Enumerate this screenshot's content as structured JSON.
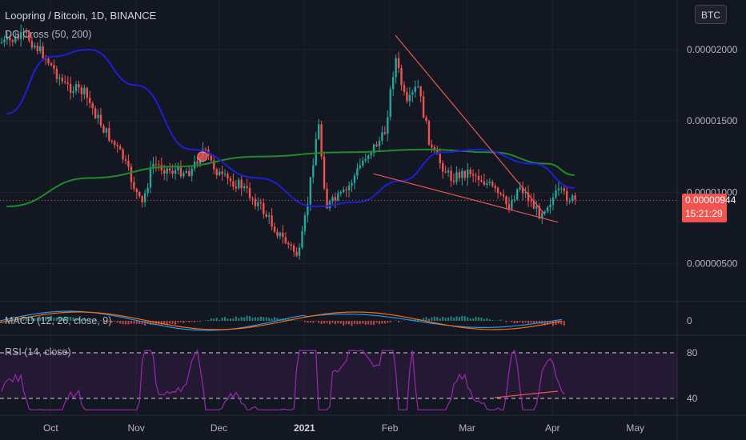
{
  "header": {
    "symbol_line": "Loopring / Bitcoin, 1D, BINANCE",
    "indicator_line": "DG Cross (50, 200)",
    "currency_button": "BTC"
  },
  "price_axis": {
    "labels": [
      "0.00002000",
      "0.00001500",
      "0.00001000",
      "0.00000500"
    ],
    "values": [
      2e-05,
      1.5e-05,
      1e-05,
      5e-06
    ]
  },
  "last_price": {
    "value": "0.00000944",
    "countdown": "15:21:29",
    "color": "#f05350"
  },
  "macd_panel": {
    "title": "MACD (12, 26, close, 9)",
    "axis_label": "0"
  },
  "rsi_panel": {
    "title": "RSI (14, close)",
    "axis_labels": [
      "80",
      "40"
    ]
  },
  "time_axis": [
    "Oct",
    "Nov",
    "Dec",
    "2021",
    "Feb",
    "Mar",
    "Apr",
    "May"
  ],
  "colors": {
    "background": "#131722",
    "up": "#26a69a",
    "down": "#ef5350",
    "ma50": "#1e1ed6",
    "ma200": "#1e8c28",
    "trendline": "#ef5350",
    "rsi": "#9c27b0",
    "macd": "#2196f3",
    "signal": "#ff6d00"
  },
  "chart_data": {
    "type": "candlestick",
    "title": "Loopring / Bitcoin, 1D, BINANCE",
    "y_unit": "BTC",
    "ylim": [
      2e-06,
      2.2e-05
    ],
    "x_ticks": [
      "Oct",
      "Nov",
      "Dec",
      "2021",
      "Feb",
      "Mar",
      "Apr",
      "May"
    ],
    "close_path": [
      [
        "2020-09-15",
        2.05e-05
      ],
      [
        "2020-09-22",
        2.1e-05
      ],
      [
        "2020-09-29",
        1.95e-05
      ],
      [
        "2020-10-06",
        1.75e-05
      ],
      [
        "2020-10-13",
        1.7e-05
      ],
      [
        "2020-10-20",
        1.45e-05
      ],
      [
        "2020-10-27",
        1.25e-05
      ],
      [
        "2020-11-03",
        9e-06
      ],
      [
        "2020-11-07",
        1.2e-05
      ],
      [
        "2020-11-14",
        1.15e-05
      ],
      [
        "2020-11-21",
        1.15e-05
      ],
      [
        "2020-11-25",
        1.3e-05
      ],
      [
        "2020-12-02",
        1.1e-05
      ],
      [
        "2020-12-09",
        1.05e-05
      ],
      [
        "2020-12-16",
        9e-06
      ],
      [
        "2020-12-23",
        7e-06
      ],
      [
        "2020-12-30",
        5.5e-06
      ],
      [
        "2021-01-02",
        9e-06
      ],
      [
        "2021-01-06",
        1.5e-05
      ],
      [
        "2021-01-09",
        9e-06
      ],
      [
        "2021-01-16",
        1e-05
      ],
      [
        "2021-01-23",
        1.25e-05
      ],
      [
        "2021-01-30",
        1.4e-05
      ],
      [
        "2021-02-03",
        1.95e-05
      ],
      [
        "2021-02-07",
        1.6e-05
      ],
      [
        "2021-02-11",
        1.75e-05
      ],
      [
        "2021-02-16",
        1.3e-05
      ],
      [
        "2021-02-23",
        1.1e-05
      ],
      [
        "2021-03-02",
        1.15e-05
      ],
      [
        "2021-03-09",
        1.05e-05
      ],
      [
        "2021-03-16",
        9e-06
      ],
      [
        "2021-03-20",
        1.05e-05
      ],
      [
        "2021-03-27",
        8.5e-06
      ],
      [
        "2021-04-03",
        1e-05
      ],
      [
        "2021-04-09",
        9.4e-06
      ]
    ],
    "ma50_path": [
      [
        "2020-09-15",
        1.55e-05
      ],
      [
        "2020-10-01",
        1.95e-05
      ],
      [
        "2020-10-15",
        2e-05
      ],
      [
        "2020-11-01",
        1.75e-05
      ],
      [
        "2020-11-21",
        1.3e-05
      ],
      [
        "2020-12-15",
        1.1e-05
      ],
      [
        "2021-01-05",
        9e-06
      ],
      [
        "2021-01-20",
        9.3e-06
      ],
      [
        "2021-02-05",
        1.08e-05
      ],
      [
        "2021-02-20",
        1.28e-05
      ],
      [
        "2021-03-05",
        1.3e-05
      ],
      [
        "2021-03-25",
        1.2e-05
      ],
      [
        "2021-04-09",
        1.03e-05
      ]
    ],
    "ma200_path": [
      [
        "2020-09-15",
        9e-06
      ],
      [
        "2020-10-15",
        1.1e-05
      ],
      [
        "2020-11-15",
        1.18e-05
      ],
      [
        "2020-12-15",
        1.25e-05
      ],
      [
        "2021-01-15",
        1.28e-05
      ],
      [
        "2021-02-15",
        1.3e-05
      ],
      [
        "2021-03-10",
        1.28e-05
      ],
      [
        "2021-03-30",
        1.2e-05
      ],
      [
        "2021-04-09",
        1.12e-05
      ]
    ],
    "trendlines": [
      [
        [
          "2021-02-03",
          2.1e-05
        ],
        [
          "2021-03-29",
          8.5e-06
        ]
      ],
      [
        [
          "2021-01-26",
          1.13e-05
        ],
        [
          "2021-04-03",
          7.9e-06
        ]
      ],
      [
        [
          "2021-03-11",
          3.4e-06
        ],
        [
          "2021-04-03",
          3.6e-06
        ]
      ]
    ],
    "cross_marker": [
      "2020-11-25",
      1.25e-05
    ],
    "rsi_levels": [
      80,
      40
    ]
  }
}
